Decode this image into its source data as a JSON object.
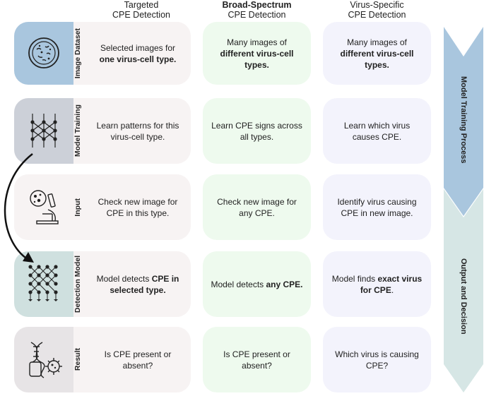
{
  "columns": [
    {
      "line1": "Targeted",
      "line2": "CPE Detection"
    },
    {
      "line1": "Broad-Spectrum",
      "line2": "CPE Detection"
    },
    {
      "line1": "Virus-Specific",
      "line2": "CPE Detection"
    }
  ],
  "rows": [
    {
      "label": "Image Dataset",
      "icon": "petri-dish-icon",
      "color": "#a9c6de",
      "targeted": {
        "pre": "Selected images for ",
        "bold": "one virus-cell type.",
        "post": ""
      },
      "broad": {
        "pre": "Many images of ",
        "bold": "different virus-cell types.",
        "post": ""
      },
      "specific": {
        "pre": "Many images of ",
        "bold": "different virus-cell types.",
        "post": ""
      }
    },
    {
      "label": "Model Training",
      "icon": "neural-network-icon",
      "color": "#ccd0d8",
      "targeted": {
        "pre": "Learn patterns for this virus-cell type.",
        "bold": "",
        "post": ""
      },
      "broad": {
        "pre": "Learn CPE signs across all types.",
        "bold": "",
        "post": ""
      },
      "specific": {
        "pre": "Learn which virus causes CPE.",
        "bold": "",
        "post": ""
      }
    },
    {
      "label": "Input",
      "icon": "microscope-icon",
      "color": "#f7f3f3",
      "targeted": {
        "pre": "Check new image for CPE in this type.",
        "bold": "",
        "post": ""
      },
      "broad": {
        "pre": "Check new image for any CPE.",
        "bold": "",
        "post": ""
      },
      "specific": {
        "pre": "Identify virus causing CPE in new image.",
        "bold": "",
        "post": ""
      }
    },
    {
      "label": "Detection Model",
      "icon": "network-output-icon",
      "color": "#cfe0df",
      "targeted": {
        "pre": "Model detects ",
        "bold": "CPE in selected type.",
        "post": ""
      },
      "broad": {
        "pre": "Model detects ",
        "bold": "any CPE.",
        "post": ""
      },
      "specific": {
        "pre": "Model finds ",
        "bold": "exact virus for CPE",
        "post": "."
      }
    },
    {
      "label": "Result",
      "icon": "dna-virus-icon",
      "color": "#e7e4e6",
      "targeted": {
        "pre": "Is CPE present or absent?",
        "bold": "",
        "post": ""
      },
      "broad": {
        "pre": "Is CPE present or absent?",
        "bold": "",
        "post": ""
      },
      "specific": {
        "pre": "Which virus is causing CPE?",
        "bold": "",
        "post": ""
      }
    }
  ],
  "process_arrows": [
    {
      "label": "Model Training Process",
      "color": "#a9c6de"
    },
    {
      "label": "Output and Decision",
      "color": "#d6e6e5"
    }
  ]
}
